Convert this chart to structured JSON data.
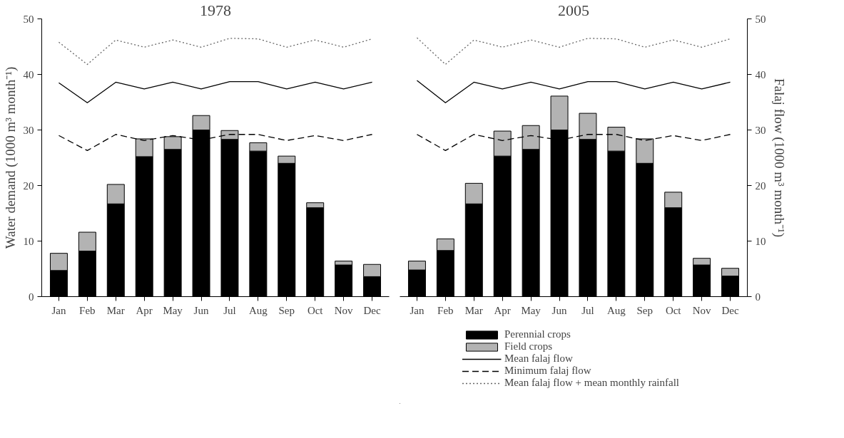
{
  "chart_data": [
    {
      "type": "bar",
      "title": "1978",
      "ylabel": "Water demand (1000 m³ month⁻¹)",
      "categories": [
        "Jan",
        "Feb",
        "Mar",
        "Apr",
        "May",
        "Jun",
        "Jul",
        "Aug",
        "Sep",
        "Oct",
        "Nov",
        "Dec"
      ],
      "stacked": true,
      "ylim": [
        0,
        50
      ],
      "yticks": [
        0,
        10,
        20,
        30,
        40,
        50
      ],
      "legend": false,
      "series": [
        {
          "color": "#000000",
          "values": [
            4.7,
            8.2,
            16.7,
            25.2,
            26.5,
            30.0,
            28.3,
            26.2,
            24.0,
            16.0,
            5.7,
            3.6
          ]
        },
        {
          "color": "#b3b3b3",
          "values": [
            3.1,
            3.4,
            3.5,
            3.2,
            2.3,
            2.6,
            1.6,
            1.5,
            1.3,
            0.9,
            0.7,
            2.2
          ]
        },
        {
          "type": "line",
          "line_style": "solid",
          "color": "#000000",
          "values": [
            38.5,
            34.9,
            38.6,
            37.4,
            38.6,
            37.4,
            38.7,
            38.7,
            37.4,
            38.6,
            37.4,
            38.6
          ]
        },
        {
          "type": "line",
          "line_style": "dashed",
          "color": "#000000",
          "values": [
            29.0,
            26.3,
            29.2,
            28.1,
            29.0,
            28.2,
            29.2,
            29.2,
            28.1,
            29.0,
            28.1,
            29.2
          ]
        },
        {
          "type": "line",
          "line_style": "dotted",
          "color": "#666666",
          "values": [
            45.8,
            41.8,
            46.2,
            44.9,
            46.2,
            44.9,
            46.5,
            46.4,
            44.9,
            46.2,
            44.9,
            46.4
          ]
        }
      ]
    },
    {
      "type": "bar",
      "title": "2005",
      "y2label": "Falaj flow (1000 m³ month⁻¹)",
      "categories": [
        "Jan",
        "Feb",
        "Mar",
        "Apr",
        "May",
        "Jun",
        "Jul",
        "Aug",
        "Sep",
        "Oct",
        "Nov",
        "Dec"
      ],
      "stacked": true,
      "y2lim": [
        0,
        50
      ],
      "y2ticks": [
        0,
        10,
        20,
        30,
        40,
        50
      ],
      "legend": "bottom",
      "series": [
        {
          "name": "Perennial crops",
          "axis": "y2",
          "color": "#000000",
          "values": [
            4.8,
            8.3,
            16.7,
            25.3,
            26.5,
            30.0,
            28.3,
            26.2,
            24.0,
            16.0,
            5.7,
            3.7
          ]
        },
        {
          "name": "Field crops",
          "axis": "y2",
          "color": "#b3b3b3",
          "values": [
            1.6,
            2.1,
            3.7,
            4.5,
            4.3,
            6.1,
            4.7,
            4.3,
            4.4,
            2.8,
            1.2,
            1.4
          ]
        },
        {
          "name": "Mean falaj flow",
          "type": "line",
          "axis": "y2",
          "line_style": "solid",
          "color": "#000000",
          "values": [
            38.9,
            34.9,
            38.6,
            37.4,
            38.6,
            37.4,
            38.7,
            38.7,
            37.4,
            38.6,
            37.4,
            38.6
          ]
        },
        {
          "name": "Minimum falaj flow",
          "type": "line",
          "axis": "y2",
          "line_style": "dashed",
          "color": "#000000",
          "values": [
            29.2,
            26.3,
            29.2,
            28.1,
            29.0,
            28.2,
            29.2,
            29.2,
            28.1,
            29.0,
            28.1,
            29.2
          ]
        },
        {
          "name": "Mean falaj flow + mean monthly rainfall",
          "type": "line",
          "axis": "y2",
          "line_style": "dotted",
          "color": "#666666",
          "values": [
            46.6,
            41.8,
            46.2,
            44.9,
            46.2,
            44.9,
            46.5,
            46.4,
            44.9,
            46.2,
            44.9,
            46.4
          ]
        }
      ]
    }
  ]
}
